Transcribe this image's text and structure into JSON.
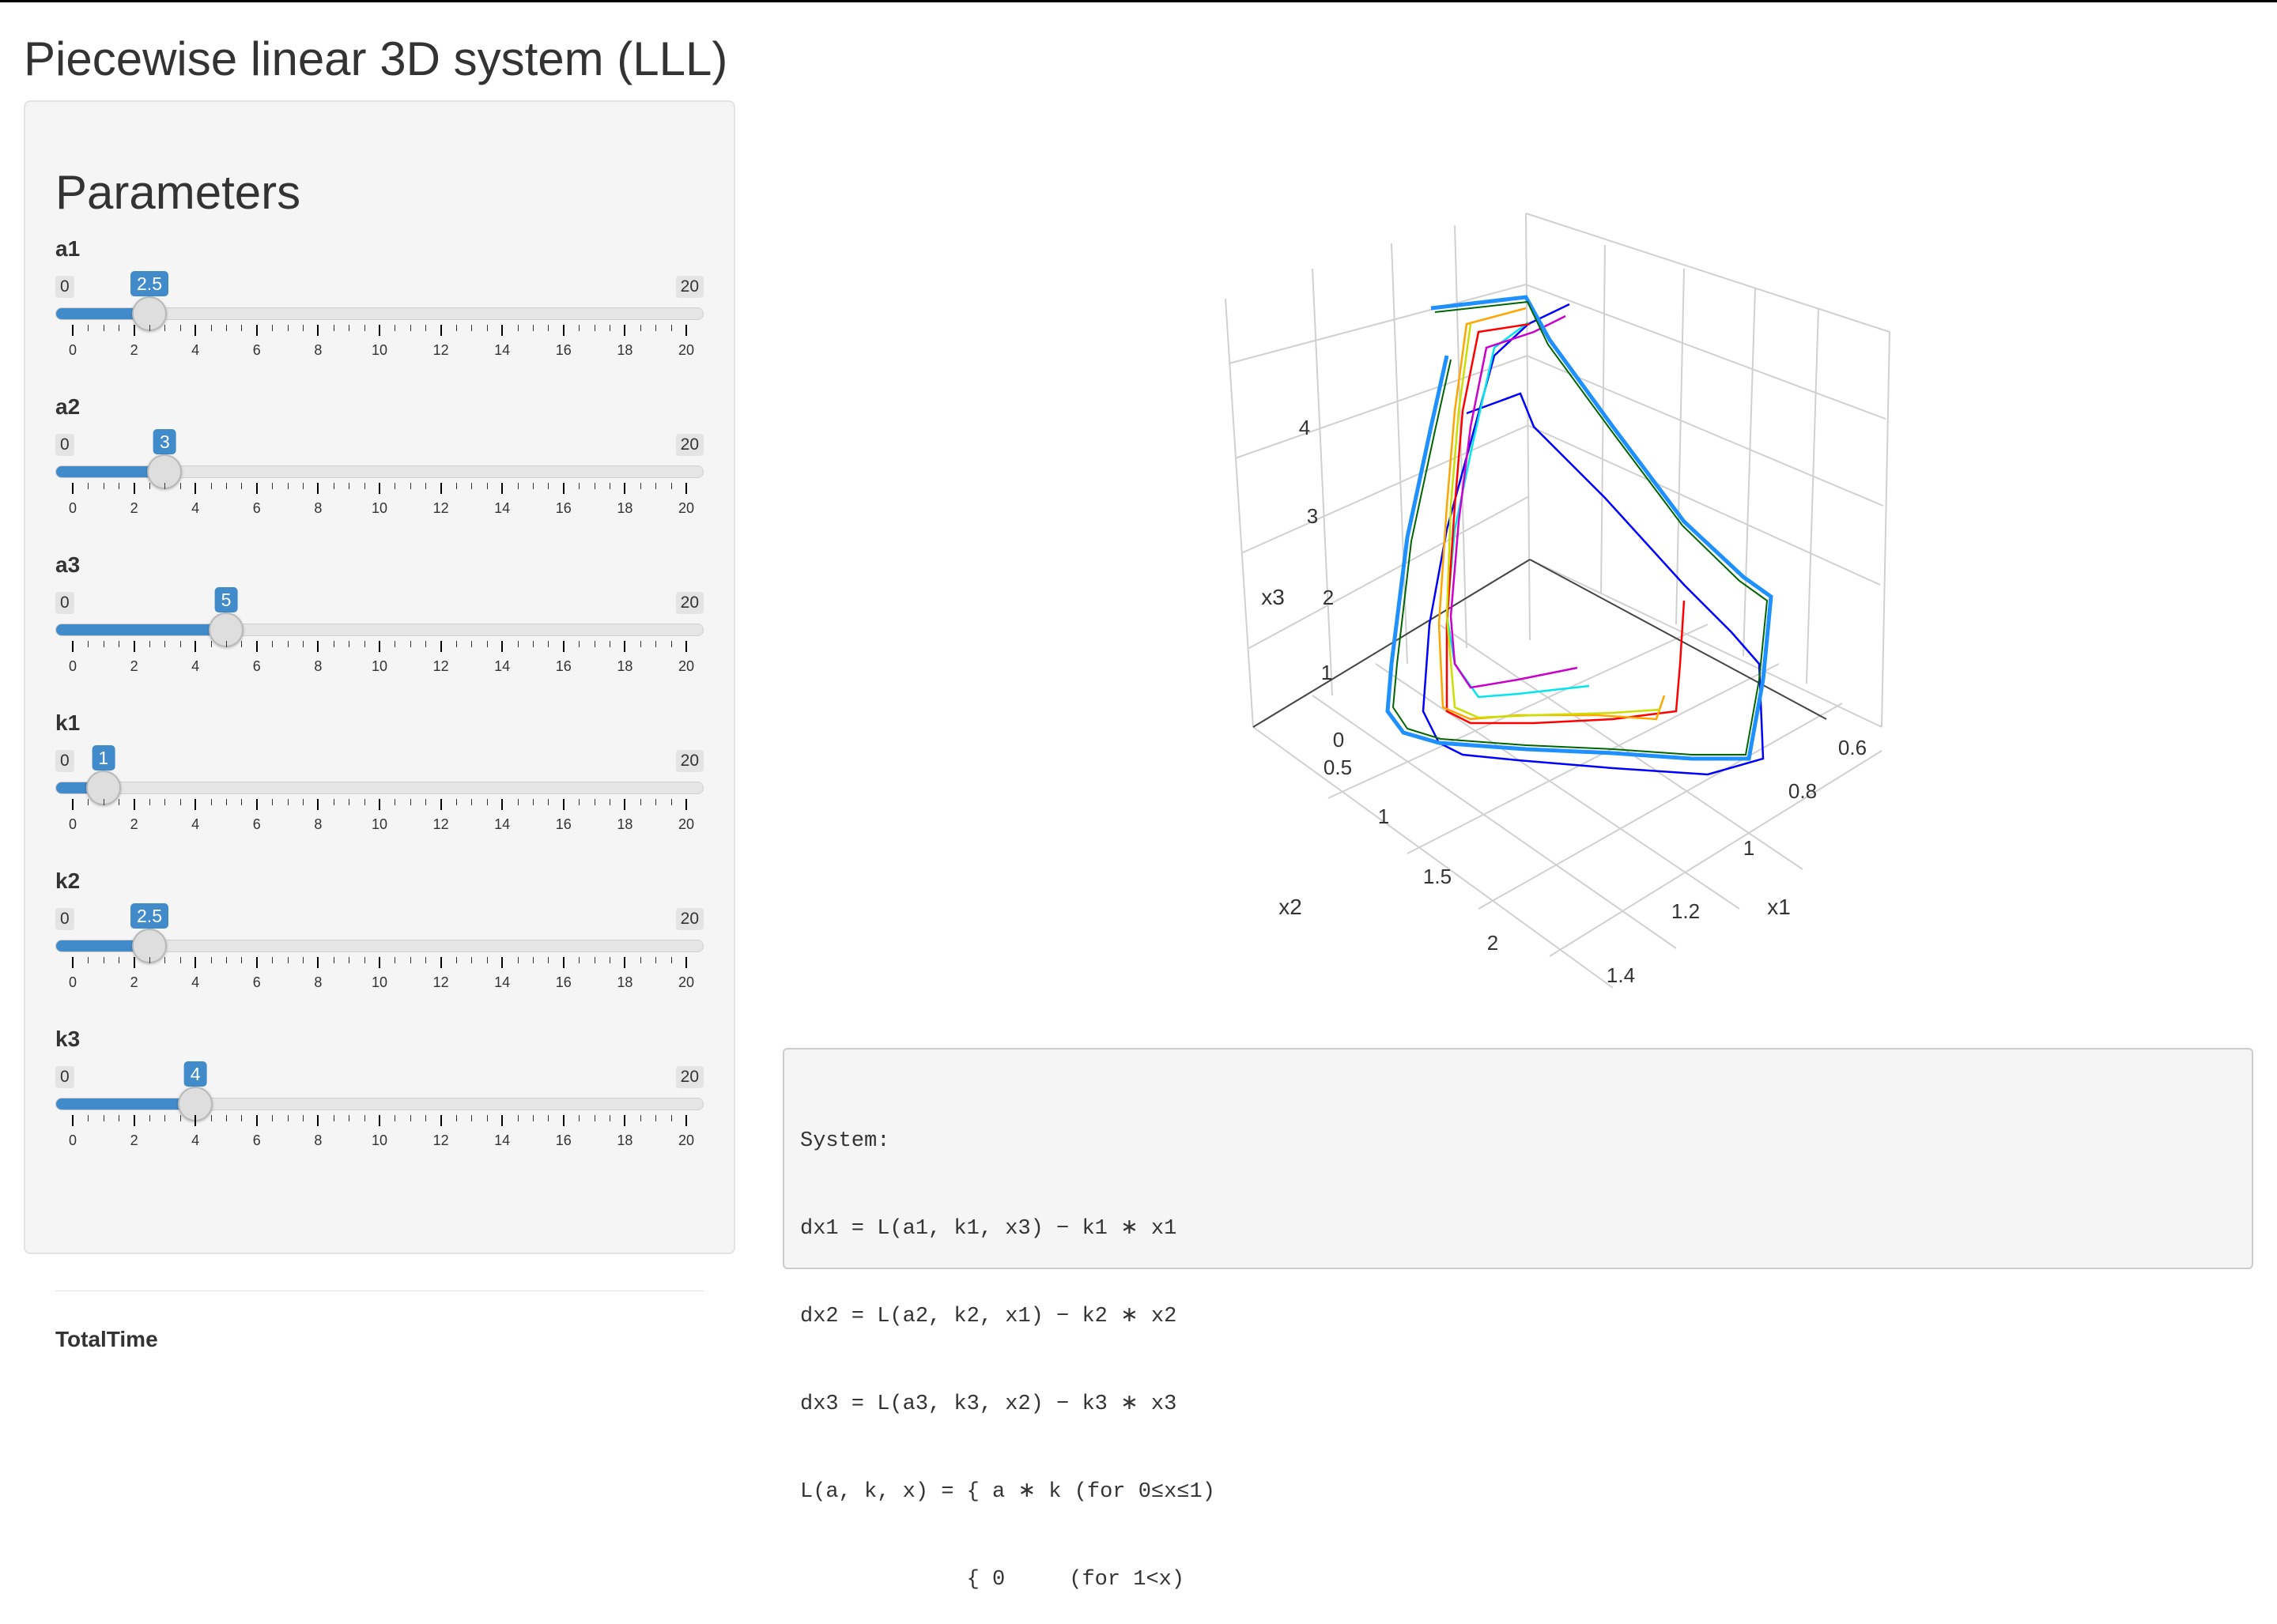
{
  "page": {
    "title": "Piecewise linear 3D system (LLL)"
  },
  "sidebar": {
    "title": "Parameters",
    "params": [
      {
        "label": "a1",
        "value": 2.5,
        "value_label": "2.5",
        "min": "0",
        "max": "20"
      },
      {
        "label": "a2",
        "value": 3,
        "value_label": "3",
        "min": "0",
        "max": "20"
      },
      {
        "label": "a3",
        "value": 5,
        "value_label": "5",
        "min": "0",
        "max": "20"
      },
      {
        "label": "k1",
        "value": 1,
        "value_label": "1",
        "min": "0",
        "max": "20"
      },
      {
        "label": "k2",
        "value": 2.5,
        "value_label": "2.5",
        "min": "0",
        "max": "20"
      },
      {
        "label": "k3",
        "value": 4,
        "value_label": "4",
        "min": "0",
        "max": "20"
      }
    ],
    "tick_labels": [
      "0",
      "2",
      "4",
      "6",
      "8",
      "10",
      "12",
      "14",
      "16",
      "18",
      "20"
    ],
    "next_param_label": "TotalTime"
  },
  "plot": {
    "type": "3d-line",
    "axes": {
      "x1": {
        "title": "x1",
        "ticks": [
          "0.6",
          "0.8",
          "1",
          "1.2",
          "1.4"
        ]
      },
      "x2": {
        "title": "x2",
        "ticks": [
          "0.5",
          "1",
          "1.5",
          "2"
        ]
      },
      "x3": {
        "title": "x3",
        "ticks": [
          "0",
          "1",
          "2",
          "3",
          "4"
        ]
      }
    },
    "series_colors": [
      "#0000ff",
      "#00e5ee",
      "#cc00cc",
      "#ff0000",
      "#ffa500",
      "#ccdd00",
      "#00aa00",
      "#8a2be2",
      "#1e90ff",
      "#006400"
    ]
  },
  "console": {
    "lines": [
      "System:",
      "dx1 = L(a1, k1, x3) − k1 ∗ x1",
      "dx2 = L(a2, k2, x1) − k2 ∗ x2",
      "dx3 = L(a3, k3, x2) − k3 ∗ x3",
      "L(a, k, x) = { a ∗ k (for 0≤x≤1)",
      "             { 0     (for 1<x)"
    ]
  }
}
